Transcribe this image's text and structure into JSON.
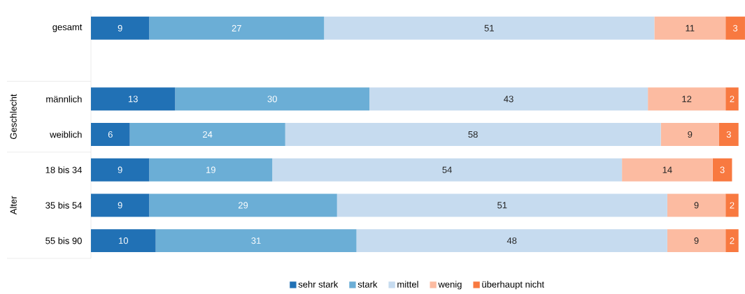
{
  "chart_data": {
    "type": "bar",
    "orientation": "horizontal",
    "stacked": true,
    "data_labels": true,
    "legend": "bottom",
    "categories": [
      "gesamt",
      null,
      "männlich",
      "weiblich",
      "18 bis 34",
      "35 bis 54",
      "55 bis 90"
    ],
    "annotations": [
      "Geschlecht",
      "Alter"
    ],
    "series": [
      {
        "name": "sehr stark",
        "color": "#2171b5",
        "values": [
          9,
          null,
          13,
          6,
          9,
          9,
          10
        ]
      },
      {
        "name": "stark",
        "color": "#6baed6",
        "values": [
          27,
          null,
          30,
          24,
          19,
          29,
          31
        ]
      },
      {
        "name": "mittel",
        "color": "#c6dbef",
        "values": [
          51,
          null,
          43,
          58,
          54,
          51,
          48
        ]
      },
      {
        "name": "wenig",
        "color": "#fcbba1",
        "values": [
          11,
          null,
          12,
          9,
          14,
          9,
          9
        ]
      },
      {
        "name": "überhaupt nicht",
        "color": "#f87940",
        "values": [
          3,
          null,
          2,
          3,
          3,
          2,
          2
        ]
      }
    ]
  }
}
